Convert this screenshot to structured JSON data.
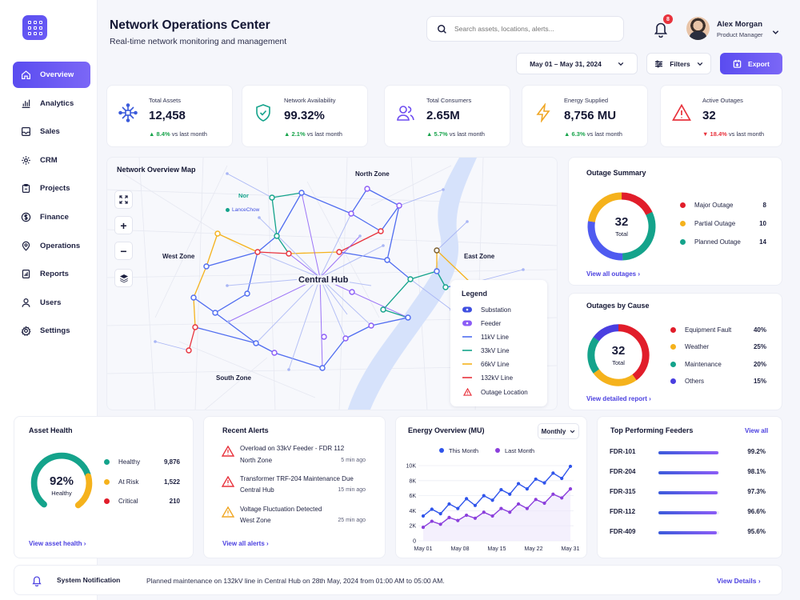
{
  "header": {
    "title": "Network Operations Center",
    "subtitle": "Real-time network monitoring and management",
    "search_placeholder": "Search assets, locations, alerts...",
    "notification_count": "8",
    "user_name": "Alex Morgan",
    "user_role": "Product Manager",
    "date_range": "May 01 – May 31, 2024",
    "filters_label": "Filters",
    "export_label": "Export"
  },
  "sidebar": {
    "items": [
      {
        "label": "Overview",
        "icon": "home-icon"
      },
      {
        "label": "Analytics",
        "icon": "bar-chart-icon"
      },
      {
        "label": "Sales",
        "icon": "sales-icon"
      },
      {
        "label": "CRM",
        "icon": "gear-icon"
      },
      {
        "label": "Projects",
        "icon": "clipboard-icon"
      },
      {
        "label": "Finance",
        "icon": "dollar-icon"
      },
      {
        "label": "Operations",
        "icon": "target-icon"
      },
      {
        "label": "Reports",
        "icon": "report-icon"
      },
      {
        "label": "Users",
        "icon": "user-icon"
      },
      {
        "label": "Settings",
        "icon": "settings-icon"
      }
    ]
  },
  "kpis": [
    {
      "label": "Total Assets",
      "value": "12,458",
      "change": "8.4%",
      "suffix": "vs last month",
      "trend": "up",
      "icon": "assets-icon",
      "color": "#3b5bdb"
    },
    {
      "label": "Network Availability",
      "value": "99.32%",
      "change": "2.1%",
      "suffix": "vs last month",
      "trend": "up",
      "icon": "shield-check-icon",
      "color": "#14a38b"
    },
    {
      "label": "Total Consumers",
      "value": "2.65M",
      "change": "5.7%",
      "suffix": "vs last month",
      "trend": "up",
      "icon": "users-icon",
      "color": "#6d4cf0"
    },
    {
      "label": "Energy Supplied",
      "value": "8,756 MU",
      "change": "6.3%",
      "suffix": "vs last month",
      "trend": "up",
      "icon": "lightning-icon",
      "color": "#f0a623"
    },
    {
      "label": "Active Outages",
      "value": "32",
      "change": "18.4%",
      "suffix": "vs last month",
      "trend": "down",
      "icon": "warning-icon",
      "color": "#e8323c"
    }
  ],
  "map": {
    "title": "Network Overview Map",
    "zones": {
      "north": "North Zone",
      "west": "West Zone",
      "east": "East Zone",
      "south": "South Zone",
      "central": "Central Hub"
    },
    "marker_labels": {
      "nor": "Nor",
      "lance": "LanceChow"
    },
    "legend_title": "Legend",
    "legend": [
      {
        "label": "Substation",
        "color": "#3f4fe0",
        "kind": "pill"
      },
      {
        "label": "Feeder",
        "color": "#8b5cf6",
        "kind": "pill"
      },
      {
        "label": "11kV Line",
        "color": "#4f6cf0",
        "kind": "line"
      },
      {
        "label": "33kV Line",
        "color": "#14a38b",
        "kind": "line"
      },
      {
        "label": "66kV Line",
        "color": "#f5b21c",
        "kind": "line"
      },
      {
        "label": "132kV Line",
        "color": "#e8323c",
        "kind": "line"
      },
      {
        "label": "Outage Location",
        "color": "#e8323c",
        "kind": "triangle"
      }
    ]
  },
  "outage_summary": {
    "title": "Outage Summary",
    "total": "32",
    "total_label": "Total",
    "items": [
      {
        "label": "Major Outage",
        "value": 8,
        "color": "#e11d2a"
      },
      {
        "label": "Partial Outage",
        "value": 10,
        "color": "#f5b21c"
      },
      {
        "label": "Planned Outage",
        "value": 14,
        "color": "#14a38b"
      }
    ],
    "ring_extra": {
      "color": "#4f5bf0",
      "share": 0.28
    },
    "link": "View all outages"
  },
  "outages_by_cause": {
    "title": "Outages by Cause",
    "total": "32",
    "total_label": "Total",
    "items": [
      {
        "label": "Equipment Fault",
        "value": "40%",
        "share": 40,
        "color": "#e11d2a"
      },
      {
        "label": "Weather",
        "value": "25%",
        "share": 25,
        "color": "#f5b21c"
      },
      {
        "label": "Maintenance",
        "value": "20%",
        "share": 20,
        "color": "#14a38b"
      },
      {
        "label": "Others",
        "value": "15%",
        "share": 15,
        "color": "#4a3fe0"
      }
    ],
    "link": "View detailed report"
  },
  "asset_health": {
    "title": "Asset Health",
    "percent": "92%",
    "percent_value": 92,
    "caption": "Healthy",
    "items": [
      {
        "label": "Healthy",
        "value": "9,876",
        "color": "#14a38b"
      },
      {
        "label": "At Risk",
        "value": "1,522",
        "color": "#f5b21c"
      },
      {
        "label": "Critical",
        "value": "210",
        "color": "#e11d2a"
      }
    ],
    "link": "View asset health"
  },
  "recent_alerts": {
    "title": "Recent Alerts",
    "items": [
      {
        "title": "Overload on 33kV Feeder - FDR 112",
        "location": "North Zone",
        "time": "5 min ago",
        "level": "critical"
      },
      {
        "title": "Transformer TRF-204 Maintenance Due",
        "location": "Central Hub",
        "time": "15 min ago",
        "level": "critical"
      },
      {
        "title": "Voltage Fluctuation Detected",
        "location": "West Zone",
        "time": "25 min ago",
        "level": "warning"
      }
    ],
    "link": "View all alerts"
  },
  "energy_overview": {
    "title": "Energy Overview (MU)",
    "period": "Monthly",
    "chart_data": {
      "type": "line",
      "title": "Energy Overview (MU)",
      "x_labels": [
        "May 01",
        "May 08",
        "May 15",
        "May 22",
        "May 31"
      ],
      "y_ticks": [
        "10K",
        "8K",
        "6K",
        "4K",
        "2K",
        "0"
      ],
      "ylim": [
        0,
        10000
      ],
      "series": [
        {
          "name": "This Month",
          "color": "#2f54eb",
          "values": [
            3300,
            4200,
            3600,
            4900,
            4300,
            5600,
            4700,
            6000,
            5400,
            6800,
            6200,
            7600,
            6900,
            8200,
            7700,
            9000,
            8300,
            9900
          ]
        },
        {
          "name": "Last Month",
          "color": "#8b3fdc",
          "values": [
            1800,
            2600,
            2200,
            3100,
            2700,
            3400,
            3000,
            3800,
            3300,
            4300,
            3800,
            4900,
            4300,
            5500,
            5000,
            6200,
            5700,
            6900
          ]
        }
      ],
      "legend": "top-center",
      "grid": true
    }
  },
  "top_feeders": {
    "title": "Top Performing Feeders",
    "link": "View all",
    "items": [
      {
        "name": "FDR-101",
        "value": "99.2%",
        "fill": 99.2
      },
      {
        "name": "FDR-204",
        "value": "98.1%",
        "fill": 98.1
      },
      {
        "name": "FDR-315",
        "value": "97.3%",
        "fill": 97.3
      },
      {
        "name": "FDR-112",
        "value": "96.6%",
        "fill": 96.6
      },
      {
        "name": "FDR-409",
        "value": "95.6%",
        "fill": 95.6
      }
    ]
  },
  "notification": {
    "title": "System Notification",
    "message": "Planned maintenance on 132kV line in Central Hub on 28th May, 2024 from 01:00 AM to 05:00 AM.",
    "link": "View Details"
  }
}
